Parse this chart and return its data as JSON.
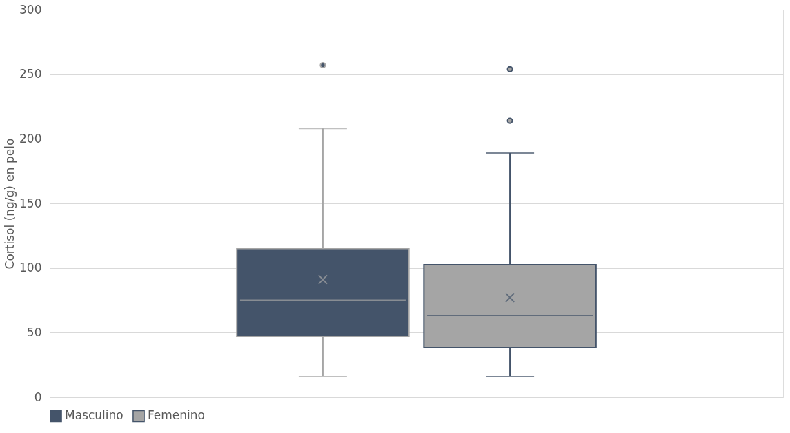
{
  "chart_data": {
    "type": "box",
    "ylabel": "Cortisol  (ng/g) en pelo",
    "categories": [
      null
    ],
    "ylim": [
      0,
      300
    ],
    "yticks": [
      0,
      50,
      100,
      150,
      200,
      250,
      300
    ],
    "grid": "y",
    "legend": "bottom",
    "series": [
      {
        "name": "Masculino",
        "color": "#44546a",
        "boxes": [
          {
            "low": 16,
            "q1": 47,
            "median": 75,
            "q3": 115,
            "high": 208,
            "mean": 91,
            "outliers": [
              257
            ]
          }
        ]
      },
      {
        "name": "Femenino",
        "color": "#a5a5a5",
        "boxes": [
          {
            "low": 16,
            "q1": 38.5,
            "median": 63,
            "q3": 102.5,
            "high": 189,
            "mean": 77,
            "outliers": [
              254,
              214
            ]
          }
        ]
      }
    ]
  }
}
